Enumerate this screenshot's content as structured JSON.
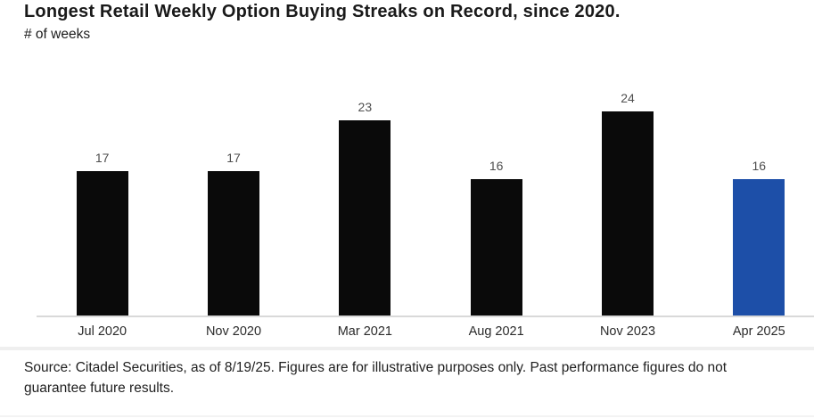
{
  "header": {
    "title": "Longest Retail Weekly Option Buying Streaks on Record, since 2020.",
    "subtitle": "# of weeks"
  },
  "chart_data": {
    "type": "bar",
    "title": "Longest Retail Weekly Option Buying Streaks on Record, since 2020.",
    "ylabel": "# of weeks",
    "xlabel": "",
    "categories": [
      "Jul 2020",
      "Nov 2020",
      "Mar 2021",
      "Aug 2021",
      "Nov 2023",
      "Apr 2025"
    ],
    "values": [
      17,
      17,
      23,
      16,
      24,
      16
    ],
    "bar_colors": [
      "#0a0a0a",
      "#0a0a0a",
      "#0a0a0a",
      "#0a0a0a",
      "#0a0a0a",
      "#1d4fa8"
    ],
    "highlight_index": 5,
    "data_labels": true,
    "ylim": [
      0,
      25
    ],
    "grid": false,
    "legend": false
  },
  "colors": {
    "bar_black": "#0a0a0a",
    "accent_blue": "#1d4fa8",
    "axis_line": "#d9d9d9",
    "value_label_gray": "#4f4f4f"
  },
  "footer": {
    "source_lines": [
      "Source: Citadel Securities, as of 8/19/25. Figures are for illustrative purposes only. Past performance figures do not",
      "guarantee future results."
    ]
  }
}
